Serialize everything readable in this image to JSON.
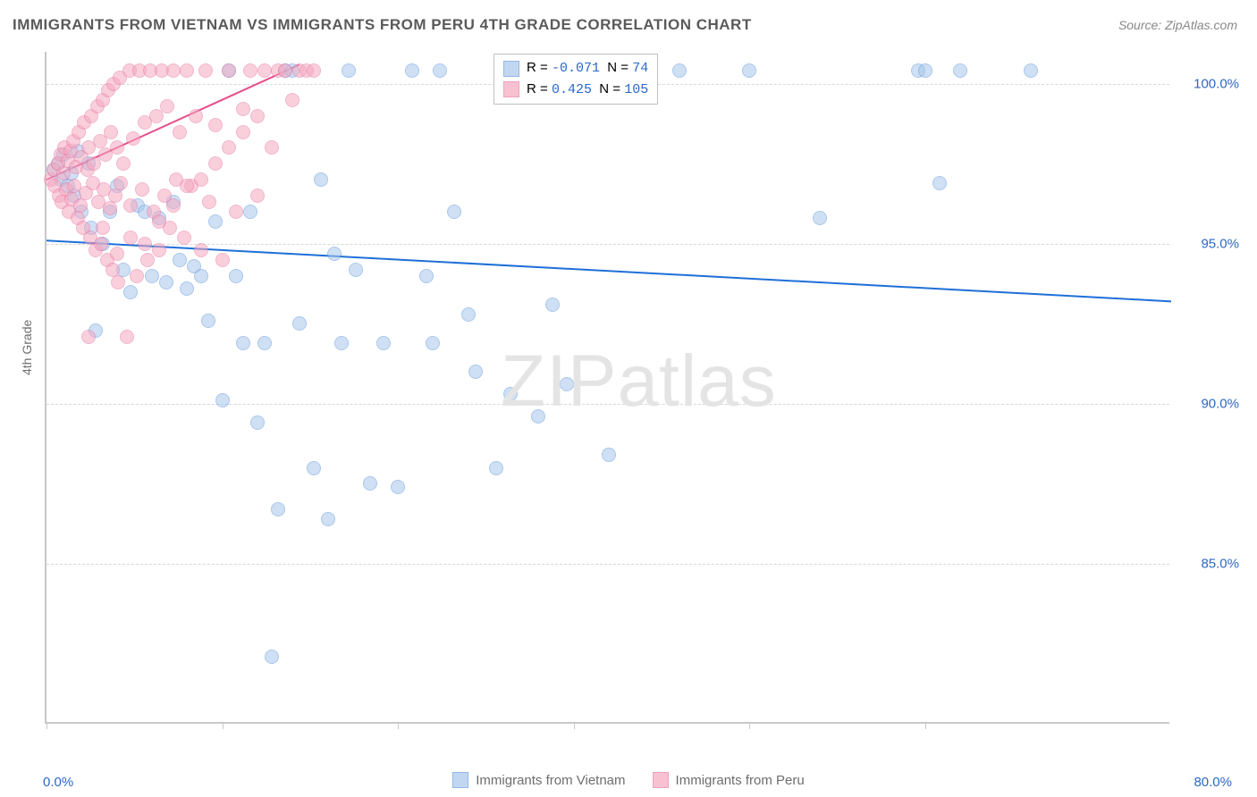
{
  "title": "IMMIGRANTS FROM VIETNAM VS IMMIGRANTS FROM PERU 4TH GRADE CORRELATION CHART",
  "source": "Source: ZipAtlas.com",
  "watermark_zip": "ZIP",
  "watermark_atlas": "atlas",
  "ylabel": "4th Grade",
  "chart": {
    "type": "scatter",
    "xlim": [
      0,
      80
    ],
    "ylim": [
      80,
      101
    ],
    "x_start_label": "0.0%",
    "x_end_label": "80.0%",
    "ytick_values": [
      85,
      90,
      95,
      100
    ],
    "ytick_labels": [
      "85.0%",
      "90.0%",
      "95.0%",
      "100.0%"
    ],
    "xtick_positions": [
      0,
      12.5,
      25,
      37.5,
      50,
      62.5
    ],
    "grid_color": "#d8d8d8",
    "background_color": "#ffffff",
    "axis_color": "#c8c8c8",
    "marker_radius": 8
  },
  "series": [
    {
      "name": "Immigrants from Vietnam",
      "color_fill": "#a8c7ec",
      "color_stroke": "#6699dd",
      "fill_opacity": 0.55,
      "r_label": "R =",
      "r_value": "-0.071",
      "n_label": "N =",
      "n_value": "74",
      "trend": {
        "x1": 0,
        "y1": 95.1,
        "x2": 80,
        "y2": 93.2,
        "color": "#1e6fd9",
        "width": 2
      },
      "points": [
        [
          0.5,
          97.3
        ],
        [
          0.8,
          97.5
        ],
        [
          1.0,
          97.0
        ],
        [
          1.2,
          97.8
        ],
        [
          1.5,
          96.8
        ],
        [
          1.8,
          97.2
        ],
        [
          2.0,
          96.5
        ],
        [
          2.2,
          97.9
        ],
        [
          2.5,
          96.0
        ],
        [
          3.0,
          97.5
        ],
        [
          3.2,
          95.5
        ],
        [
          3.5,
          92.3
        ],
        [
          4.0,
          95.0
        ],
        [
          4.5,
          96.0
        ],
        [
          5.0,
          96.8
        ],
        [
          5.5,
          94.2
        ],
        [
          6.0,
          93.5
        ],
        [
          6.5,
          96.2
        ],
        [
          7.0,
          96.0
        ],
        [
          7.5,
          94.0
        ],
        [
          8.0,
          95.8
        ],
        [
          8.5,
          93.8
        ],
        [
          9.0,
          96.3
        ],
        [
          9.5,
          94.5
        ],
        [
          10.0,
          93.6
        ],
        [
          10.5,
          94.3
        ],
        [
          11.0,
          94.0
        ],
        [
          11.5,
          92.6
        ],
        [
          12.0,
          95.7
        ],
        [
          12.5,
          90.1
        ],
        [
          13.0,
          100.4
        ],
        [
          13.5,
          94.0
        ],
        [
          14.0,
          91.9
        ],
        [
          14.5,
          96.0
        ],
        [
          15.0,
          89.4
        ],
        [
          15.5,
          91.9
        ],
        [
          16.0,
          82.1
        ],
        [
          16.5,
          86.7
        ],
        [
          17.0,
          100.4
        ],
        [
          17.5,
          100.4
        ],
        [
          18.0,
          92.5
        ],
        [
          19.0,
          88.0
        ],
        [
          19.5,
          97.0
        ],
        [
          20.0,
          86.4
        ],
        [
          20.5,
          94.7
        ],
        [
          21.0,
          91.9
        ],
        [
          21.5,
          100.4
        ],
        [
          22.0,
          94.2
        ],
        [
          23.0,
          87.5
        ],
        [
          24.0,
          91.9
        ],
        [
          25.0,
          87.4
        ],
        [
          26.0,
          100.4
        ],
        [
          27.0,
          94.0
        ],
        [
          27.5,
          91.9
        ],
        [
          28.0,
          100.4
        ],
        [
          29.0,
          96.0
        ],
        [
          30.0,
          92.8
        ],
        [
          30.5,
          91.0
        ],
        [
          32.0,
          88.0
        ],
        [
          33.0,
          90.3
        ],
        [
          34.0,
          100.4
        ],
        [
          35.0,
          89.6
        ],
        [
          36.0,
          93.1
        ],
        [
          37.0,
          90.6
        ],
        [
          38.0,
          100.4
        ],
        [
          40.0,
          88.4
        ],
        [
          45.0,
          100.4
        ],
        [
          50.0,
          100.4
        ],
        [
          55.0,
          95.8
        ],
        [
          62.0,
          100.4
        ],
        [
          62.5,
          100.4
        ],
        [
          63.5,
          96.9
        ],
        [
          65.0,
          100.4
        ],
        [
          70.0,
          100.4
        ]
      ]
    },
    {
      "name": "Immigrants from Peru",
      "color_fill": "#f5a8c0",
      "color_stroke": "#e87ba5",
      "fill_opacity": 0.55,
      "r_label": "R =",
      "r_value": "0.425",
      "n_label": "N =",
      "n_value": "105",
      "trend": {
        "x1": 0,
        "y1": 97.0,
        "x2": 18,
        "y2": 100.6,
        "color": "#e64d8c",
        "width": 2
      },
      "points": [
        [
          0.3,
          97.0
        ],
        [
          0.5,
          97.3
        ],
        [
          0.6,
          96.8
        ],
        [
          0.8,
          97.5
        ],
        [
          0.9,
          96.5
        ],
        [
          1.0,
          97.8
        ],
        [
          1.1,
          96.3
        ],
        [
          1.2,
          97.2
        ],
        [
          1.3,
          98.0
        ],
        [
          1.4,
          96.7
        ],
        [
          1.5,
          97.6
        ],
        [
          1.6,
          96.0
        ],
        [
          1.7,
          97.9
        ],
        [
          1.8,
          96.4
        ],
        [
          1.9,
          98.2
        ],
        [
          2.0,
          96.8
        ],
        [
          2.1,
          97.4
        ],
        [
          2.2,
          95.8
        ],
        [
          2.3,
          98.5
        ],
        [
          2.4,
          96.2
        ],
        [
          2.5,
          97.7
        ],
        [
          2.6,
          95.5
        ],
        [
          2.7,
          98.8
        ],
        [
          2.8,
          96.6
        ],
        [
          2.9,
          97.3
        ],
        [
          3.0,
          98.0
        ],
        [
          3.1,
          95.2
        ],
        [
          3.2,
          99.0
        ],
        [
          3.3,
          96.9
        ],
        [
          3.4,
          97.5
        ],
        [
          3.5,
          94.8
        ],
        [
          3.6,
          99.3
        ],
        [
          3.7,
          96.3
        ],
        [
          3.8,
          98.2
        ],
        [
          3.9,
          95.0
        ],
        [
          4.0,
          99.5
        ],
        [
          4.1,
          96.7
        ],
        [
          4.2,
          97.8
        ],
        [
          4.3,
          94.5
        ],
        [
          4.4,
          99.8
        ],
        [
          4.5,
          96.1
        ],
        [
          4.6,
          98.5
        ],
        [
          4.7,
          94.2
        ],
        [
          4.8,
          100.0
        ],
        [
          4.9,
          96.5
        ],
        [
          5.0,
          98.0
        ],
        [
          5.1,
          93.8
        ],
        [
          5.2,
          100.2
        ],
        [
          5.3,
          96.9
        ],
        [
          5.5,
          97.5
        ],
        [
          5.7,
          92.1
        ],
        [
          5.9,
          100.4
        ],
        [
          6.0,
          96.2
        ],
        [
          6.2,
          98.3
        ],
        [
          6.4,
          94.0
        ],
        [
          6.6,
          100.4
        ],
        [
          6.8,
          96.7
        ],
        [
          7.0,
          98.8
        ],
        [
          7.2,
          94.5
        ],
        [
          7.4,
          100.4
        ],
        [
          7.6,
          96.0
        ],
        [
          7.8,
          99.0
        ],
        [
          8.0,
          94.8
        ],
        [
          8.2,
          100.4
        ],
        [
          8.4,
          96.5
        ],
        [
          8.6,
          99.3
        ],
        [
          8.8,
          95.5
        ],
        [
          9.0,
          100.4
        ],
        [
          9.2,
          97.0
        ],
        [
          9.5,
          98.5
        ],
        [
          9.8,
          95.2
        ],
        [
          10.0,
          100.4
        ],
        [
          10.3,
          96.8
        ],
        [
          10.6,
          99.0
        ],
        [
          11.0,
          94.8
        ],
        [
          11.3,
          100.4
        ],
        [
          11.6,
          96.3
        ],
        [
          12.0,
          98.7
        ],
        [
          12.5,
          94.5
        ],
        [
          13.0,
          100.4
        ],
        [
          13.5,
          96.0
        ],
        [
          14.0,
          99.2
        ],
        [
          14.5,
          100.4
        ],
        [
          15.0,
          96.5
        ],
        [
          15.5,
          100.4
        ],
        [
          16.0,
          98.0
        ],
        [
          16.5,
          100.4
        ],
        [
          17.0,
          100.4
        ],
        [
          17.5,
          99.5
        ],
        [
          18.0,
          100.4
        ],
        [
          18.5,
          100.4
        ],
        [
          19.0,
          100.4
        ],
        [
          3.0,
          92.1
        ],
        [
          4.0,
          95.5
        ],
        [
          5.0,
          94.7
        ],
        [
          6.0,
          95.2
        ],
        [
          7.0,
          95.0
        ],
        [
          8.0,
          95.7
        ],
        [
          9.0,
          96.2
        ],
        [
          10.0,
          96.8
        ],
        [
          11.0,
          97.0
        ],
        [
          12.0,
          97.5
        ],
        [
          13.0,
          98.0
        ],
        [
          14.0,
          98.5
        ],
        [
          15.0,
          99.0
        ]
      ]
    }
  ]
}
